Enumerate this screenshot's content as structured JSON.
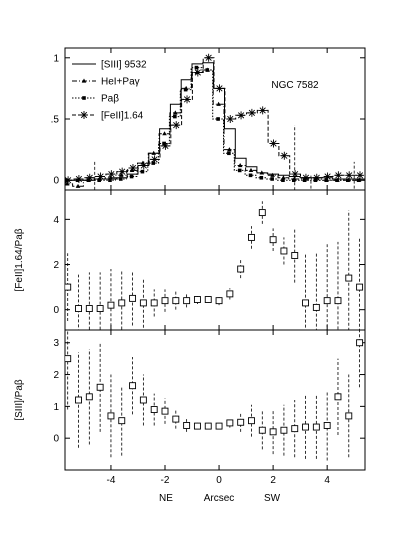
{
  "chart_data": [
    {
      "type": "line",
      "object_label": "NGC 7582",
      "ylabel": "",
      "ylim": [
        -0.08,
        1.08
      ],
      "yticks": [
        0,
        0.5,
        1
      ],
      "ytick_labels": [
        "0",
        ".5",
        "1"
      ],
      "xlim": [
        -5.7,
        5.4
      ],
      "legend_position": "top-left",
      "legend": [
        {
          "label": "[SIII] 9532",
          "style": "solid",
          "marker": "none"
        },
        {
          "label": "HeI+Paγ",
          "style": "dashdot",
          "marker": "triangle"
        },
        {
          "label": "Paβ",
          "style": "dotted",
          "marker": "square"
        },
        {
          "label": "[FeII]1.64",
          "style": "dashed",
          "marker": "star"
        }
      ],
      "series": [
        {
          "name": "[SIII] 9532",
          "x": [
            -5.6,
            -5.2,
            -4.8,
            -4.4,
            -4.0,
            -3.6,
            -3.2,
            -2.8,
            -2.4,
            -2.0,
            -1.6,
            -1.2,
            -0.8,
            -0.4,
            0.0,
            0.4,
            0.8,
            1.2,
            1.6,
            2.0,
            2.4,
            2.8,
            3.2,
            3.6,
            4.0,
            4.4,
            4.8,
            5.2
          ],
          "y": [
            0.0,
            0.0,
            0.0,
            0.01,
            0.01,
            0.02,
            0.05,
            0.12,
            0.22,
            0.42,
            0.62,
            0.82,
            0.95,
            0.96,
            0.75,
            0.42,
            0.18,
            0.11,
            0.06,
            0.05,
            0.04,
            0.03,
            0.02,
            0.02,
            0.02,
            0.01,
            0.01,
            0.01
          ]
        },
        {
          "name": "HeI+Paγ",
          "x": [
            -5.6,
            -5.2,
            -4.8,
            -4.4,
            -4.0,
            -3.6,
            -3.2,
            -2.8,
            -2.4,
            -2.0,
            -1.6,
            -1.2,
            -0.8,
            -0.4,
            0.0,
            0.4,
            0.8,
            1.2,
            1.6,
            2.0,
            2.4,
            2.8,
            3.2,
            3.6,
            4.0,
            4.4,
            4.8,
            5.2
          ],
          "y": [
            -0.03,
            -0.05,
            0.0,
            0.01,
            0.02,
            0.04,
            0.08,
            0.14,
            0.22,
            0.38,
            0.55,
            0.75,
            0.88,
            0.9,
            0.62,
            0.25,
            0.12,
            0.08,
            0.06,
            0.04,
            0.02,
            0.01,
            0.01,
            0.01,
            0.0,
            0.0,
            0.0,
            0.0
          ]
        },
        {
          "name": "Paβ",
          "x": [
            -5.6,
            -5.2,
            -4.8,
            -4.4,
            -4.0,
            -3.6,
            -3.2,
            -2.8,
            -2.4,
            -2.0,
            -1.6,
            -1.2,
            -0.8,
            -0.4,
            0.0,
            0.4,
            0.8,
            1.2,
            1.6,
            2.0,
            2.4,
            2.8,
            3.2,
            3.6,
            4.0,
            4.4,
            4.8,
            5.2
          ],
          "y": [
            0.0,
            0.0,
            0.0,
            0.0,
            0.0,
            0.01,
            0.03,
            0.07,
            0.14,
            0.3,
            0.52,
            0.74,
            0.92,
            0.9,
            0.5,
            0.22,
            0.08,
            0.04,
            0.02,
            0.01,
            0.0,
            0.0,
            0.0,
            0.0,
            0.0,
            0.0,
            0.0,
            0.0
          ]
        },
        {
          "name": "[FeII]1.64",
          "x": [
            -5.6,
            -5.2,
            -4.8,
            -4.4,
            -4.0,
            -3.6,
            -3.2,
            -2.8,
            -2.4,
            -2.0,
            -1.6,
            -1.2,
            -0.8,
            -0.4,
            0.0,
            0.4,
            0.8,
            1.2,
            1.6,
            2.0,
            2.4,
            2.8,
            3.2,
            3.6,
            4.0,
            4.4,
            4.8,
            5.2
          ],
          "y": [
            0.0,
            0.01,
            0.02,
            0.03,
            0.05,
            0.07,
            0.1,
            0.12,
            0.17,
            0.28,
            0.45,
            0.66,
            0.88,
            1.0,
            0.75,
            0.5,
            0.53,
            0.55,
            0.57,
            0.3,
            0.2,
            0.05,
            0.02,
            0.02,
            0.03,
            0.04,
            0.04,
            0.04
          ]
        }
      ]
    },
    {
      "type": "scatter",
      "ylabel": "[FeII]1.64/Paβ",
      "ylim": [
        -0.9,
        5.3
      ],
      "yticks": [
        0,
        2,
        4
      ],
      "ytick_labels": [
        "0",
        "2",
        "4"
      ],
      "xlim": [
        -5.7,
        5.4
      ],
      "series": [
        {
          "name": "",
          "x": [
            -5.6,
            -5.2,
            -4.8,
            -4.4,
            -4.0,
            -3.6,
            -3.2,
            -2.8,
            -2.4,
            -2.0,
            -1.6,
            -1.2,
            -0.8,
            -0.4,
            0.0,
            0.4,
            0.8,
            1.2,
            1.6,
            2.0,
            2.4,
            2.8,
            3.2,
            3.6,
            4.0,
            4.4,
            4.8,
            5.2
          ],
          "y": [
            1.0,
            0.05,
            0.05,
            0.05,
            0.2,
            0.3,
            0.5,
            0.3,
            0.3,
            0.4,
            0.4,
            0.4,
            0.45,
            0.45,
            0.4,
            0.7,
            1.8,
            3.2,
            4.3,
            3.1,
            2.6,
            2.4,
            0.3,
            0.1,
            0.4,
            0.4,
            1.4,
            1.0
          ],
          "err": [
            1.5,
            1.5,
            1.6,
            1.6,
            1.6,
            1.4,
            1.2,
            1.1,
            0.6,
            0.5,
            0.4,
            0.3,
            0.2,
            0.15,
            0.2,
            0.25,
            0.4,
            0.5,
            0.5,
            0.5,
            0.6,
            1.2,
            2.2,
            2.4,
            2.5,
            2.6,
            3.0,
            2.2
          ]
        }
      ]
    },
    {
      "type": "scatter",
      "ylabel": "[SIII]/Paβ",
      "ylim": [
        -1.0,
        3.4
      ],
      "yticks": [
        0,
        1,
        2,
        3
      ],
      "ytick_labels": [
        "0",
        "1",
        "2",
        "3"
      ],
      "xlim": [
        -5.7,
        5.4
      ],
      "xticks": [
        -4,
        -2,
        0,
        2,
        4
      ],
      "xtick_labels": [
        "-4",
        "-2",
        "0",
        "2",
        "4"
      ],
      "xlabel": "Arcsec",
      "direction_labels": [
        "NE",
        "SW"
      ],
      "series": [
        {
          "name": "",
          "x": [
            -5.6,
            -5.2,
            -4.8,
            -4.4,
            -4.0,
            -3.6,
            -3.2,
            -2.8,
            -2.4,
            -2.0,
            -1.6,
            -1.2,
            -0.8,
            -0.4,
            0.0,
            0.4,
            0.8,
            1.2,
            1.6,
            2.0,
            2.4,
            2.8,
            3.2,
            3.6,
            4.0,
            4.4,
            4.8,
            5.2
          ],
          "y": [
            2.5,
            1.2,
            1.3,
            1.6,
            0.7,
            0.55,
            1.65,
            1.2,
            0.9,
            0.85,
            0.6,
            0.4,
            0.38,
            0.38,
            0.38,
            0.48,
            0.5,
            0.55,
            0.25,
            0.2,
            0.25,
            0.3,
            0.35,
            0.35,
            0.4,
            1.3,
            0.7,
            3.0
          ],
          "err": [
            1.6,
            1.5,
            1.5,
            1.4,
            1.3,
            1.1,
            0.9,
            0.8,
            0.5,
            0.4,
            0.3,
            0.2,
            0.1,
            0.1,
            0.1,
            0.15,
            0.3,
            0.5,
            0.6,
            0.7,
            0.8,
            0.9,
            1.0,
            1.0,
            1.1,
            1.2,
            1.3,
            1.4
          ]
        }
      ]
    }
  ]
}
